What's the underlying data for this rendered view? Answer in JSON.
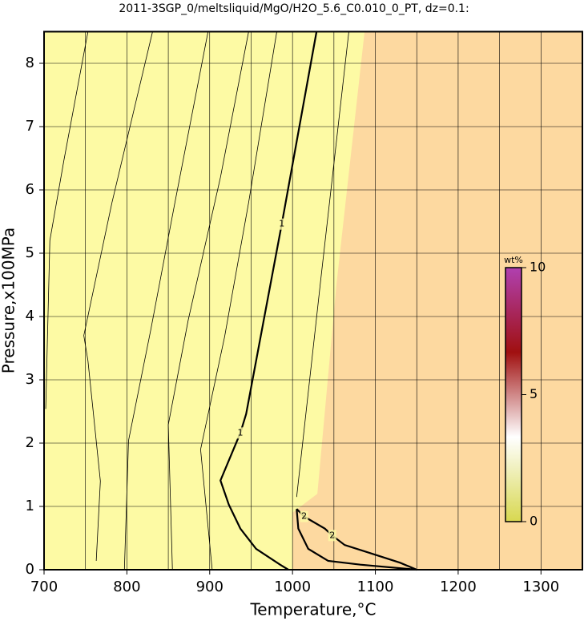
{
  "chart_data": {
    "type": "contour",
    "title": "2011-3SGP_0/meltsliquid/MgO/H2O_5.6_C0.010_0_PT, dz=0.1:",
    "xlabel": "Temperature,°C",
    "ylabel": "Pressure,x100MPa",
    "xlim": [
      700,
      1350
    ],
    "ylim": [
      0,
      8.5
    ],
    "xticks": [
      700,
      800,
      900,
      1000,
      1100,
      1200,
      1300
    ],
    "xgrid": [
      750,
      850,
      950,
      1050,
      1150,
      1250
    ],
    "yticks": [
      0,
      1,
      2,
      3,
      4,
      5,
      6,
      7,
      8
    ],
    "grid": true,
    "region_colors": [
      "#fdfaa4",
      "#fdd9a0"
    ],
    "region_boundary": {
      "x": [
        1087,
        1053,
        1030,
        1000,
        1000
      ],
      "y": [
        8.5,
        4.5,
        1.2,
        0.9,
        0
      ]
    },
    "contours": [
      {
        "label": "1",
        "bold": true,
        "x": [
          1029,
          987,
          944,
          937,
          913,
          923,
          937,
          956,
          985,
          995
        ],
        "y": [
          8.5,
          5.46,
          2.46,
          2.16,
          1.41,
          1.03,
          0.65,
          0.33,
          0.08,
          0
        ]
      },
      {
        "label": "2",
        "bold": true,
        "x": [
          1005,
          1014,
          1039,
          1048,
          1063,
          1092,
          1130,
          1150,
          1082,
          1043,
          1019,
          1007,
          1005
        ],
        "y": [
          0.96,
          0.84,
          0.65,
          0.54,
          0.39,
          0.27,
          0.11,
          0,
          0.08,
          0.14,
          0.33,
          0.65,
          0.96
        ]
      },
      {
        "bold": false,
        "x": [
          702,
          707,
          724,
          753
        ],
        "y": [
          2.54,
          5.2,
          6.47,
          8.5
        ]
      },
      {
        "bold": false,
        "x": [
          763,
          768,
          753,
          748,
          782,
          831
        ],
        "y": [
          0.14,
          1.4,
          3.3,
          3.7,
          5.8,
          8.5
        ]
      },
      {
        "bold": false,
        "x": [
          797,
          802,
          829,
          858,
          898
        ],
        "y": [
          0,
          2.04,
          3.8,
          5.8,
          8.5
        ]
      },
      {
        "bold": false,
        "x": [
          855,
          850,
          874,
          913,
          947
        ],
        "y": [
          0,
          2.29,
          3.94,
          6.2,
          8.5
        ]
      },
      {
        "bold": false,
        "x": [
          903,
          889,
          918,
          947,
          981
        ],
        "y": [
          0,
          1.9,
          3.68,
          5.8,
          8.5
        ]
      },
      {
        "bold": false,
        "x": [
          1068,
          1034,
          1005
        ],
        "y": [
          8.5,
          4.57,
          1.15
        ]
      }
    ],
    "colorbar": {
      "label": "wt%",
      "lim": [
        0,
        10
      ],
      "ticks": [
        0,
        5,
        10
      ],
      "colors": [
        "#d8d850",
        "#ffffff",
        "#a01010",
        "#b040b0"
      ]
    }
  }
}
